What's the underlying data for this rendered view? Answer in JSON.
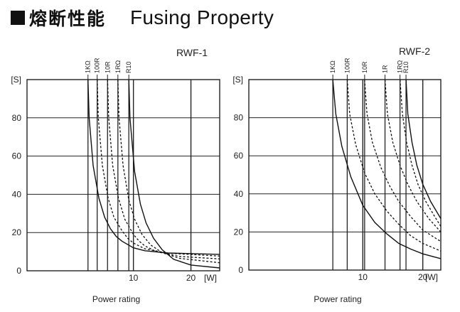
{
  "heading": {
    "zh": "熔断性能",
    "en": "Fusing Property"
  },
  "chart_data": [
    {
      "type": "line",
      "title": "RWF-1",
      "xlabel": "Power rating",
      "xunit": "[W]",
      "yunit": "[S]",
      "xlim": [
        -8.5,
        25
      ],
      "ylim": [
        0,
        100
      ],
      "xticks": [
        10,
        20
      ],
      "yticks": [
        0,
        20,
        40,
        60,
        80
      ],
      "grid": true,
      "series": [
        {
          "name": "1KΩ",
          "style": "solid",
          "asymptote": 2.1,
          "floor": 8.5,
          "points": [
            [
              2.1,
              100
            ],
            [
              2.3,
              80
            ],
            [
              3.0,
              55
            ],
            [
              4,
              38
            ],
            [
              5,
              28
            ],
            [
              6,
              22
            ],
            [
              7,
              18
            ],
            [
              8,
              15.5
            ],
            [
              10,
              12
            ],
            [
              12,
              10.5
            ],
            [
              16,
              9.3
            ],
            [
              25,
              8.6
            ]
          ]
        },
        {
          "name": "100R",
          "style": "dashed",
          "asymptote": 3.7,
          "floor": 7.5,
          "points": [
            [
              3.7,
              100
            ],
            [
              3.9,
              80
            ],
            [
              4.6,
              55
            ],
            [
              5.6,
              38
            ],
            [
              6.6,
              28
            ],
            [
              8,
              21
            ],
            [
              9,
              17
            ],
            [
              10,
              14.5
            ],
            [
              12,
              11.5
            ],
            [
              16,
              9.2
            ],
            [
              25,
              7.7
            ]
          ]
        },
        {
          "name": "10R",
          "style": "dashed",
          "asymptote": 5.5,
          "floor": 6.0,
          "points": [
            [
              5.5,
              100
            ],
            [
              5.7,
              80
            ],
            [
              6.4,
              55
            ],
            [
              7.4,
              38
            ],
            [
              8.5,
              27
            ],
            [
              10,
              19
            ],
            [
              11,
              15.5
            ],
            [
              12,
              13
            ],
            [
              14,
              10
            ],
            [
              18,
              7.5
            ],
            [
              25,
              6.2
            ]
          ]
        },
        {
          "name": "1RΩ",
          "style": "dashed",
          "asymptote": 7.3,
          "floor": 4.0,
          "points": [
            [
              7.3,
              100
            ],
            [
              7.5,
              80
            ],
            [
              8.2,
              55
            ],
            [
              9.2,
              37
            ],
            [
              10.2,
              27
            ],
            [
              11.5,
              19
            ],
            [
              13,
              13.5
            ],
            [
              15,
              9.5
            ],
            [
              18,
              6.5
            ],
            [
              25,
              4.2
            ]
          ]
        },
        {
          "name": "R10",
          "style": "solid",
          "asymptote": 9.2,
          "floor": 1.5,
          "points": [
            [
              9.2,
              100
            ],
            [
              9.4,
              80
            ],
            [
              10.2,
              52
            ],
            [
              11.2,
              35
            ],
            [
              12.2,
              25
            ],
            [
              13.5,
              17
            ],
            [
              15,
              11
            ],
            [
              17,
              6
            ],
            [
              20,
              3
            ],
            [
              25,
              1.5
            ]
          ]
        }
      ]
    },
    {
      "type": "line",
      "title": "RWF-2",
      "xlabel": "Power rating",
      "xunit": "[W]",
      "yunit": "[S]",
      "xlim": [
        -9,
        23
      ],
      "ylim": [
        0,
        100
      ],
      "xticks": [
        10,
        20
      ],
      "yticks": [
        0,
        20,
        40,
        60,
        80
      ],
      "grid": true,
      "series": [
        {
          "name": "1KΩ",
          "style": "solid",
          "asymptote": 5.0,
          "points": [
            [
              5.0,
              100
            ],
            [
              5.5,
              82
            ],
            [
              6.5,
              65
            ],
            [
              8,
              49
            ],
            [
              10,
              34
            ],
            [
              12,
              25
            ],
            [
              14,
              19
            ],
            [
              16,
              14
            ],
            [
              18,
              11
            ],
            [
              20,
              8.5
            ],
            [
              23,
              6
            ]
          ]
        },
        {
          "name": "100R",
          "style": "dashed",
          "asymptote": 7.4,
          "points": [
            [
              7.4,
              100
            ],
            [
              7.8,
              82
            ],
            [
              8.8,
              66
            ],
            [
              10.3,
              51
            ],
            [
              12,
              40
            ],
            [
              14,
              31
            ],
            [
              16,
              24
            ],
            [
              18,
              18
            ],
            [
              20,
              14
            ],
            [
              23,
              10
            ]
          ]
        },
        {
          "name": "10R",
          "style": "dashed",
          "asymptote": 10.3,
          "points": [
            [
              10.3,
              100
            ],
            [
              10.7,
              82
            ],
            [
              11.6,
              67
            ],
            [
              13,
              54
            ],
            [
              14.5,
              44
            ],
            [
              16,
              36
            ],
            [
              18,
              28
            ],
            [
              20,
              21
            ],
            [
              23,
              15
            ]
          ]
        },
        {
          "name": "1R",
          "style": "dashed",
          "asymptote": 13.7,
          "points": [
            [
              13.7,
              100
            ],
            [
              14.1,
              82
            ],
            [
              15,
              67
            ],
            [
              16.2,
              55
            ],
            [
              17.5,
              45
            ],
            [
              19,
              36
            ],
            [
              21,
              27
            ],
            [
              23,
              20
            ]
          ]
        },
        {
          "name": "1RΩ",
          "style": "dashed",
          "asymptote": 16.2,
          "points": [
            [
              16.2,
              100
            ],
            [
              16.6,
              82
            ],
            [
              17.3,
              67
            ],
            [
              18.2,
              55
            ],
            [
              19.2,
              45
            ],
            [
              20.5,
              36
            ],
            [
              22,
              28
            ],
            [
              23,
              23
            ]
          ]
        },
        {
          "name": "R10",
          "style": "solid",
          "asymptote": 17.2,
          "points": [
            [
              17.2,
              100
            ],
            [
              17.5,
              82
            ],
            [
              18.2,
              67
            ],
            [
              19,
              55
            ],
            [
              20,
              45
            ],
            [
              21.3,
              36
            ],
            [
              23,
              27
            ]
          ]
        }
      ]
    }
  ]
}
